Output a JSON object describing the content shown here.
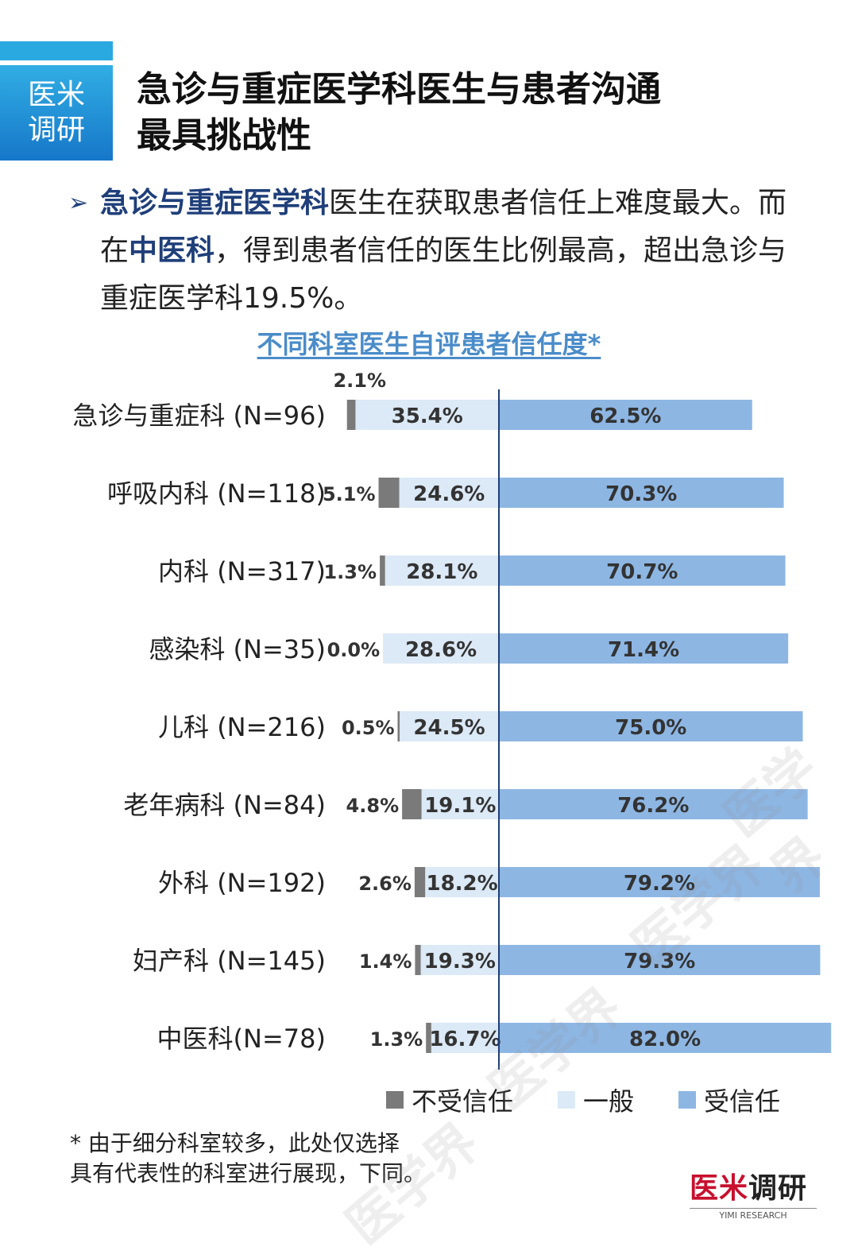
{
  "header": {
    "badge_line1": "医米",
    "badge_line2": "调研",
    "title_line1": "急诊与重症医学科医生与患者沟通",
    "title_line2": "最具挑战性"
  },
  "bullet": {
    "part1_highlight": "急诊与重症医学科",
    "part2": "医生在获取患者信任上难度最大。而在",
    "part3_highlight": "中医科",
    "part4": "，得到患者信任的医生比例最高，超出急诊与重症医学科19.5%。"
  },
  "colors": {
    "distrust": "#7a7a7a",
    "neutral": "#dce9f6",
    "trust": "#8db6e3",
    "accent": "#1f3f7a"
  },
  "chart_data": {
    "type": "bar",
    "subtype": "diverging-stacked-horizontal",
    "title": "不同科室医生自评患者信任度*",
    "categories": [
      "急诊与重症科 (N=96)",
      "呼吸内科 (N=118)",
      "内科 (N=317)",
      "感染科 (N=35)",
      "儿科 (N=216)",
      "老年病科 (N=84)",
      "外科 (N=192)",
      "妇产科 (N=145)",
      "中医科(N=78)"
    ],
    "series": [
      {
        "name": "不受信任",
        "values": [
          2.1,
          5.1,
          1.3,
          0.0,
          0.5,
          4.8,
          2.6,
          1.4,
          1.3
        ],
        "labels": [
          "2.1%",
          "5.1%",
          "1.3%",
          "0.0%",
          "0.5%",
          "4.8%",
          "2.6%",
          "1.4%",
          "1.3%"
        ]
      },
      {
        "name": "一般",
        "values": [
          35.4,
          24.6,
          28.1,
          28.6,
          24.5,
          19.1,
          18.2,
          19.3,
          16.7
        ],
        "labels": [
          "35.4%",
          "24.6%",
          "28.1%",
          "28.6%",
          "24.5%",
          "19.1%",
          "18.2%",
          "19.3%",
          "16.7%"
        ]
      },
      {
        "name": "受信任",
        "values": [
          62.5,
          70.3,
          70.7,
          71.4,
          75.0,
          76.2,
          79.2,
          79.3,
          82.0
        ],
        "labels": [
          "62.5%",
          "70.3%",
          "70.7%",
          "71.4%",
          "75.0%",
          "76.2%",
          "79.2%",
          "79.3%",
          "82.0%"
        ]
      }
    ],
    "legend_position": "bottom"
  },
  "footnote": {
    "line1": "* 由于细分科室较多，此处仅选择",
    "line2": "具有代表性的科室进行展现，下同。"
  },
  "logo": {
    "text_part1": "医",
    "text_part2": "米",
    "text_part3": "调研",
    "en": "YIMI RESEARCH"
  },
  "watermark": "医学界"
}
